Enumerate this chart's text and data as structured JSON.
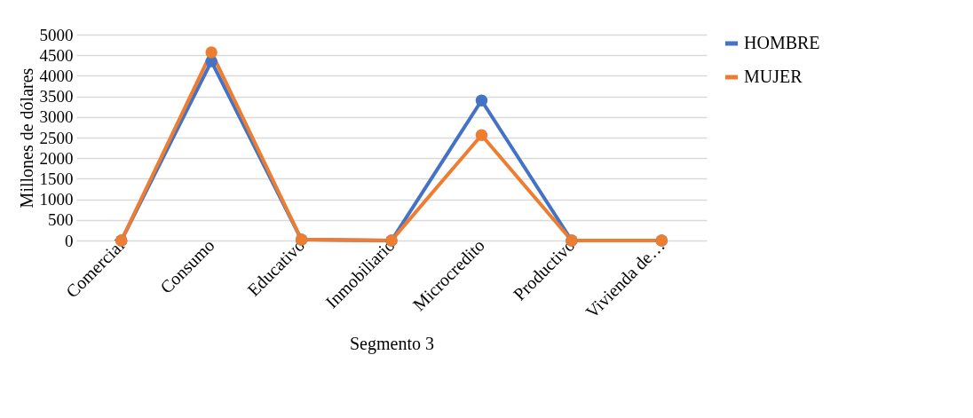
{
  "chart_data": {
    "type": "line",
    "xlabel": "Segmento 3",
    "ylabel": "Millones de dólares",
    "categories": [
      "Comercial",
      "Consumo",
      "Educativo",
      "Inmobiliario",
      "Microcredito",
      "Productivo",
      "Vivienda de…"
    ],
    "series": [
      {
        "name": "HOMBRE",
        "color": "#4472c4",
        "values": [
          0,
          4350,
          20,
          0,
          3400,
          0,
          0
        ]
      },
      {
        "name": "MUJER",
        "color": "#ed7d31",
        "values": [
          0,
          4570,
          20,
          0,
          2560,
          0,
          0
        ]
      }
    ],
    "ylim": [
      0,
      5000
    ],
    "yticks": [
      0,
      500,
      1000,
      1500,
      2000,
      2500,
      3000,
      3500,
      4000,
      4500,
      5000
    ],
    "grid": "y",
    "legend": "right",
    "marker": "circle",
    "line_style": "solid"
  }
}
